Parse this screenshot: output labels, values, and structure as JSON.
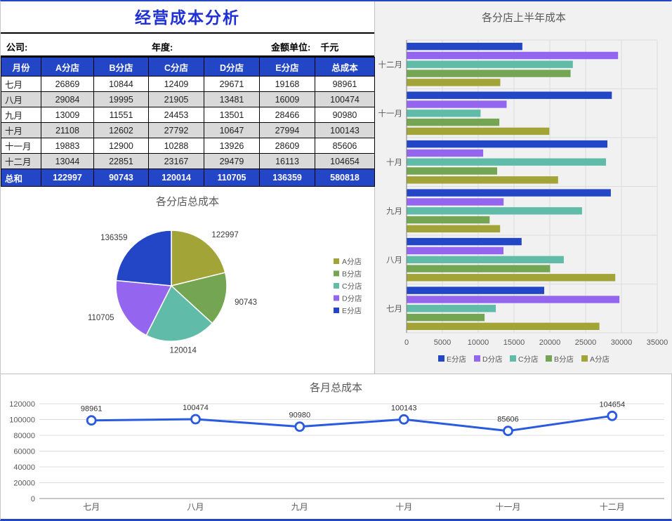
{
  "title": "经营成本分析",
  "meta": {
    "company_label": "公司:",
    "year_label": "年度:",
    "unit_label": "金额单位:",
    "unit_value": "千元"
  },
  "table": {
    "headers": [
      "月份",
      "A分店",
      "B分店",
      "C分店",
      "D分店",
      "E分店",
      "总成本"
    ],
    "rows": [
      [
        "七月",
        "26869",
        "10844",
        "12409",
        "29671",
        "19168",
        "98961"
      ],
      [
        "八月",
        "29084",
        "19995",
        "21905",
        "13481",
        "16009",
        "100474"
      ],
      [
        "九月",
        "13009",
        "11551",
        "24453",
        "13501",
        "28466",
        "90980"
      ],
      [
        "十月",
        "21108",
        "12602",
        "27792",
        "10647",
        "27994",
        "100143"
      ],
      [
        "十一月",
        "19883",
        "12900",
        "10288",
        "13926",
        "28609",
        "85606"
      ],
      [
        "十二月",
        "13044",
        "22851",
        "23167",
        "29479",
        "16113",
        "104654"
      ]
    ],
    "total_row": [
      "总和",
      "122997",
      "90743",
      "120014",
      "110705",
      "136359",
      "580818"
    ]
  },
  "colors": {
    "accent": "#2346C7",
    "title_text": "#1F2FD6",
    "line": "#2A5AE0",
    "alt_row": "#D9D9D9",
    "series": {
      "A分店": "#A2A438",
      "B分店": "#74A553",
      "C分店": "#60BCA8",
      "D分店": "#9466F0",
      "E分店": "#2346C7"
    }
  },
  "chart_data": [
    {
      "type": "pie",
      "title": "各分店总成本",
      "labels": [
        "A分店",
        "B分店",
        "C分店",
        "D分店",
        "E分店"
      ],
      "values": [
        122997,
        90743,
        120014,
        110705,
        136359
      ],
      "legend": [
        "A分店",
        "B分店",
        "C分店",
        "D分店",
        "E分店"
      ],
      "legend_position": "right"
    },
    {
      "type": "bar",
      "orientation": "horizontal",
      "title": "各分店上半年成本",
      "categories": [
        "七月",
        "八月",
        "九月",
        "十月",
        "十一月",
        "十二月"
      ],
      "series": [
        {
          "name": "A分店",
          "values": [
            26869,
            29084,
            13009,
            21108,
            19883,
            13044
          ]
        },
        {
          "name": "B分店",
          "values": [
            10844,
            19995,
            11551,
            12602,
            12900,
            22851
          ]
        },
        {
          "name": "C分店",
          "values": [
            12409,
            21905,
            24453,
            27792,
            10288,
            23167
          ]
        },
        {
          "name": "D分店",
          "values": [
            29671,
            13481,
            13501,
            10647,
            13926,
            29479
          ]
        },
        {
          "name": "E分店",
          "values": [
            19168,
            16009,
            28466,
            27994,
            28609,
            16113
          ]
        }
      ],
      "xlim": [
        0,
        35000
      ],
      "xticks": [
        0,
        5000,
        10000,
        15000,
        20000,
        25000,
        30000,
        35000
      ],
      "legend": [
        "E分店",
        "D分店",
        "C分店",
        "B分店",
        "A分店"
      ],
      "legend_position": "bottom",
      "grid": true
    },
    {
      "type": "line",
      "title": "各月总成本",
      "categories": [
        "七月",
        "八月",
        "九月",
        "十月",
        "十一月",
        "十二月"
      ],
      "values": [
        98961,
        100474,
        90980,
        100143,
        85606,
        104654
      ],
      "ylim": [
        0,
        120000
      ],
      "yticks": [
        0,
        20000,
        40000,
        60000,
        80000,
        100000,
        120000
      ],
      "grid": true
    }
  ]
}
